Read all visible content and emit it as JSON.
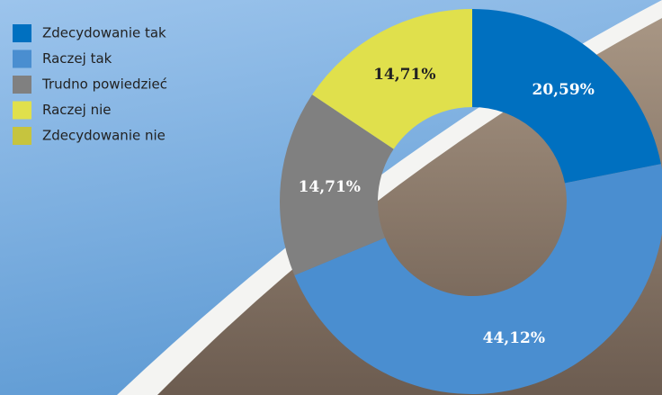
{
  "chart_data": {
    "type": "donut",
    "categories": [
      "Zdecydowanie tak",
      "Raczej tak",
      "Trudno powiedzieć",
      "Raczej nie",
      "Zdecydowanie nie"
    ],
    "values": [
      20.59,
      44.12,
      14.71,
      14.71,
      0
    ],
    "value_labels": [
      "20,59%",
      "44,12%",
      "14,71%",
      "14,71%",
      null
    ],
    "colors": [
      "#0070c0",
      "#4a8ed0",
      "#808080",
      "#e0e04c",
      "#c6c43e"
    ],
    "label_colors": [
      "#ffffff",
      "#ffffff",
      "#ffffff",
      "#222222",
      "#222222"
    ],
    "legend": "top-left"
  }
}
